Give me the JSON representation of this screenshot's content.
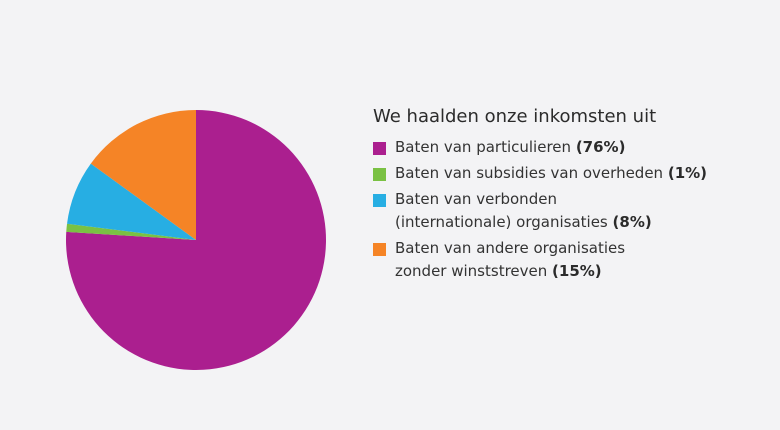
{
  "chart_data": {
    "type": "pie",
    "title": "We haalden onze inkomsten uit",
    "legend_position": "right",
    "slices": [
      {
        "label": "Baten van particulieren",
        "label_line2": "",
        "percent_label": "(76%)",
        "value": 76,
        "color": "#ab1f8f"
      },
      {
        "label": "Baten van subsidies van overheden",
        "label_line2": "",
        "percent_label": "(1%)",
        "value": 1,
        "color": "#7ac143"
      },
      {
        "label": "Baten van verbonden",
        "label_line2": "(internationale) organisaties",
        "percent_label": "(8%)",
        "value": 8,
        "color": "#27aee3"
      },
      {
        "label": "Baten van andere organisaties",
        "label_line2": "zonder winststreven",
        "percent_label": "(15%)",
        "value": 15,
        "color": "#f58426"
      }
    ]
  }
}
